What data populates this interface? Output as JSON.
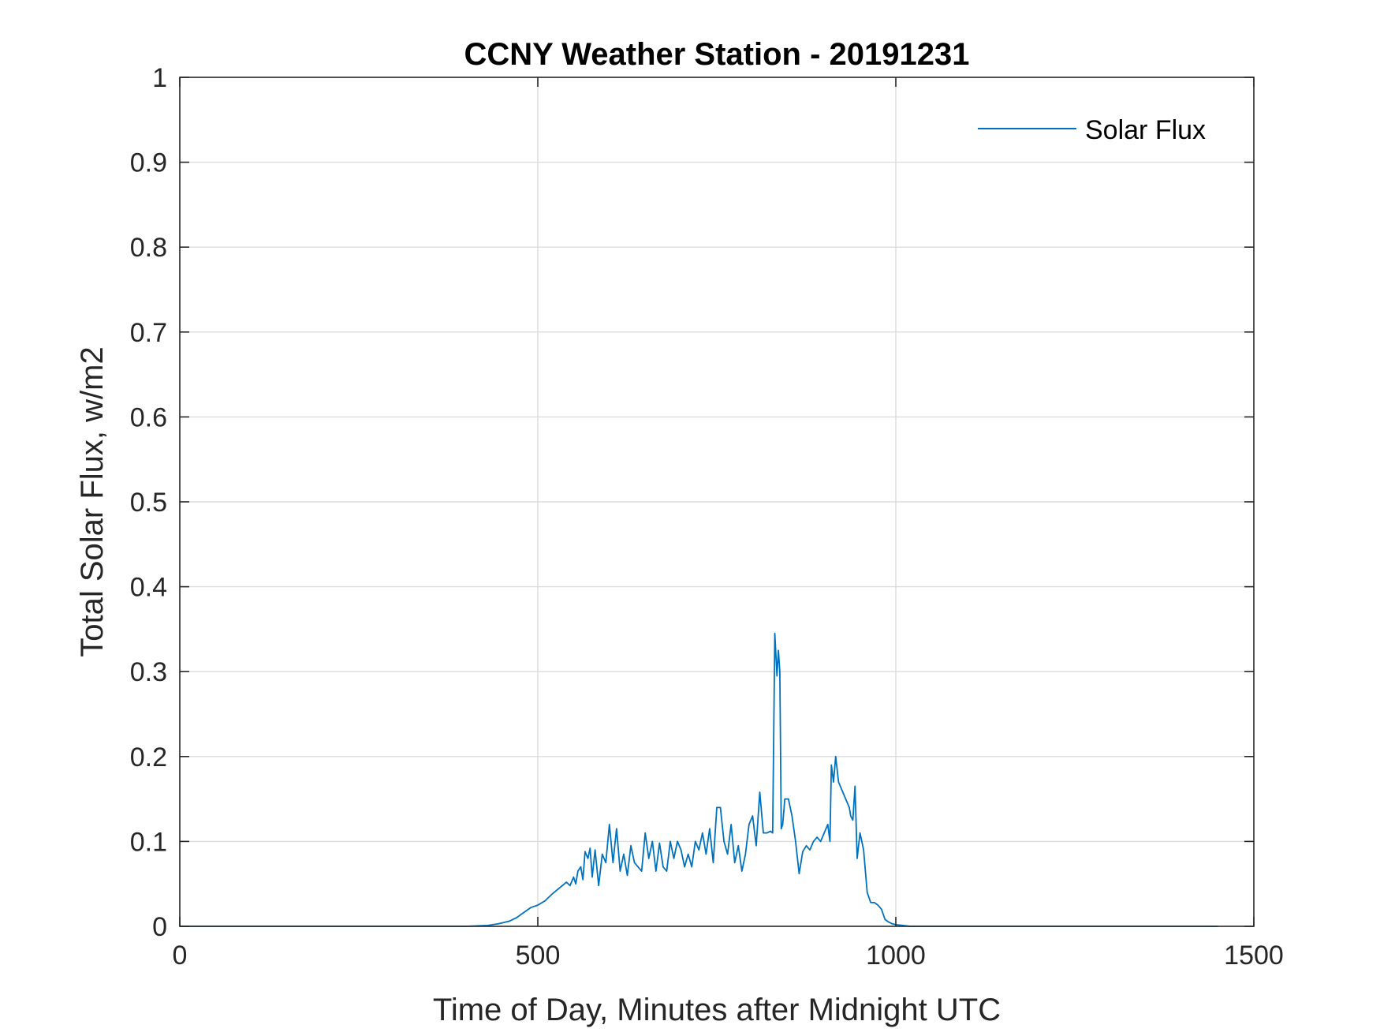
{
  "chart_data": {
    "type": "line",
    "title": "CCNY Weather Station - 20191231",
    "xlabel": "Time of Day, Minutes after Midnight UTC",
    "ylabel": "Total Solar Flux, w/m2",
    "xlim": [
      0,
      1500
    ],
    "ylim": [
      0,
      1
    ],
    "xticks": [
      0,
      500,
      1000,
      1500
    ],
    "xtick_labels": [
      "0",
      "500",
      "1000",
      "1500"
    ],
    "yticks": [
      0,
      0.1,
      0.2,
      0.3,
      0.4,
      0.5,
      0.6,
      0.7,
      0.8,
      0.9,
      1
    ],
    "ytick_labels": [
      "0",
      "0.1",
      "0.2",
      "0.3",
      "0.4",
      "0.5",
      "0.6",
      "0.7",
      "0.8",
      "0.9",
      "1"
    ],
    "grid": true,
    "legend": {
      "location": "top-right",
      "entries": [
        "Solar Flux"
      ]
    },
    "series": [
      {
        "name": "Solar Flux",
        "color": "#0072BD",
        "x": [
          0,
          100,
          200,
          300,
          400,
          430,
          445,
          460,
          470,
          480,
          490,
          500,
          510,
          520,
          530,
          540,
          545,
          550,
          553,
          556,
          560,
          563,
          566,
          570,
          573,
          576,
          580,
          585,
          590,
          595,
          600,
          605,
          610,
          615,
          620,
          625,
          630,
          635,
          640,
          645,
          650,
          655,
          660,
          665,
          670,
          675,
          680,
          685,
          690,
          695,
          700,
          705,
          710,
          715,
          720,
          725,
          730,
          735,
          740,
          745,
          750,
          755,
          760,
          765,
          770,
          775,
          780,
          785,
          790,
          795,
          800,
          805,
          810,
          815,
          820,
          825,
          828,
          831,
          834,
          836,
          838,
          840,
          842,
          845,
          850,
          855,
          860,
          865,
          870,
          875,
          880,
          885,
          890,
          895,
          900,
          905,
          908,
          910,
          913,
          916,
          920,
          925,
          930,
          935,
          937,
          940,
          943,
          946,
          950,
          955,
          960,
          965,
          970,
          975,
          980,
          985,
          990,
          995,
          1000,
          1010,
          1020,
          1050,
          1100,
          1200,
          1300,
          1450
        ],
        "y": [
          0,
          0,
          0,
          0,
          0,
          0.001,
          0.003,
          0.006,
          0.01,
          0.016,
          0.022,
          0.025,
          0.03,
          0.038,
          0.045,
          0.052,
          0.048,
          0.058,
          0.05,
          0.065,
          0.07,
          0.055,
          0.088,
          0.08,
          0.092,
          0.058,
          0.09,
          0.048,
          0.085,
          0.075,
          0.12,
          0.075,
          0.115,
          0.065,
          0.085,
          0.06,
          0.095,
          0.075,
          0.07,
          0.065,
          0.11,
          0.08,
          0.1,
          0.065,
          0.098,
          0.07,
          0.065,
          0.1,
          0.08,
          0.1,
          0.09,
          0.07,
          0.085,
          0.07,
          0.1,
          0.09,
          0.11,
          0.085,
          0.115,
          0.075,
          0.14,
          0.14,
          0.1,
          0.085,
          0.12,
          0.075,
          0.095,
          0.065,
          0.085,
          0.12,
          0.13,
          0.095,
          0.158,
          0.11,
          0.11,
          0.112,
          0.11,
          0.345,
          0.295,
          0.325,
          0.3,
          0.115,
          0.12,
          0.15,
          0.15,
          0.13,
          0.1,
          0.062,
          0.088,
          0.095,
          0.09,
          0.1,
          0.105,
          0.1,
          0.11,
          0.12,
          0.1,
          0.19,
          0.17,
          0.2,
          0.17,
          0.16,
          0.15,
          0.14,
          0.13,
          0.125,
          0.165,
          0.08,
          0.11,
          0.09,
          0.04,
          0.028,
          0.028,
          0.025,
          0.02,
          0.008,
          0.005,
          0.003,
          0.002,
          0.001,
          0,
          0,
          0,
          0,
          0,
          0
        ]
      }
    ]
  }
}
